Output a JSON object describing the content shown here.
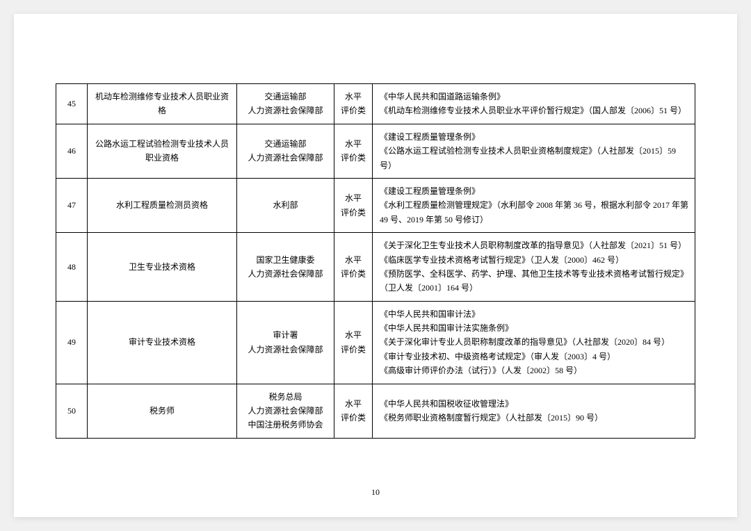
{
  "page_number": "10",
  "table": {
    "columns": {
      "num_width": 45,
      "name_width": 215,
      "dept_width": 140,
      "type_width": 55
    },
    "border_color": "#000000",
    "background_color": "#ffffff",
    "font_size": 12,
    "line_height": 1.7,
    "rows": [
      {
        "num": "45",
        "name": "机动车检测维修专业技术人员职业资格",
        "dept": "交通运输部\n人力资源社会保障部",
        "type": "水平\n评价类",
        "basis": "《中华人民共和国道路运输条例》\n《机动车检测维修专业技术人员职业水平评价暂行规定》（国人部发〔2006〕51 号）"
      },
      {
        "num": "46",
        "name": "公路水运工程试验检测专业技术人员职业资格",
        "dept": "交通运输部\n人力资源社会保障部",
        "type": "水平\n评价类",
        "basis": "《建设工程质量管理条例》\n《公路水运工程试验检测专业技术人员职业资格制度规定》（人社部发〔2015〕59 号）"
      },
      {
        "num": "47",
        "name": "水利工程质量检测员资格",
        "dept": "水利部",
        "type": "水平\n评价类",
        "basis": "《建设工程质量管理条例》\n《水利工程质量检测管理规定》（水利部令 2008 年第 36 号，根据水利部令 2017 年第 49 号、2019 年第 50 号修订）"
      },
      {
        "num": "48",
        "name": "卫生专业技术资格",
        "dept": "国家卫生健康委\n人力资源社会保障部",
        "type": "水平\n评价类",
        "basis": "《关于深化卫生专业技术人员职称制度改革的指导意见》（人社部发〔2021〕51 号）\n《临床医学专业技术资格考试暂行规定》（卫人发〔2000〕462 号）\n《预防医学、全科医学、药学、护理、其他卫生技术等专业技术资格考试暂行规定》（卫人发〔2001〕164 号）"
      },
      {
        "num": "49",
        "name": "审计专业技术资格",
        "dept": "审计署\n人力资源社会保障部",
        "type": "水平\n评价类",
        "basis": "《中华人民共和国审计法》\n《中华人民共和国审计法实施条例》\n《关于深化审计专业人员职称制度改革的指导意见》（人社部发〔2020〕84 号）\n《审计专业技术初、中级资格考试规定》（审人发〔2003〕4 号）\n《高级审计师评价办法（试行）》（人发〔2002〕58 号）"
      },
      {
        "num": "50",
        "name": "税务师",
        "dept": "税务总局\n人力资源社会保障部\n中国注册税务师协会",
        "type": "水平\n评价类",
        "basis": "《中华人民共和国税收征收管理法》\n《税务师职业资格制度暂行规定》（人社部发〔2015〕90 号）"
      }
    ]
  }
}
